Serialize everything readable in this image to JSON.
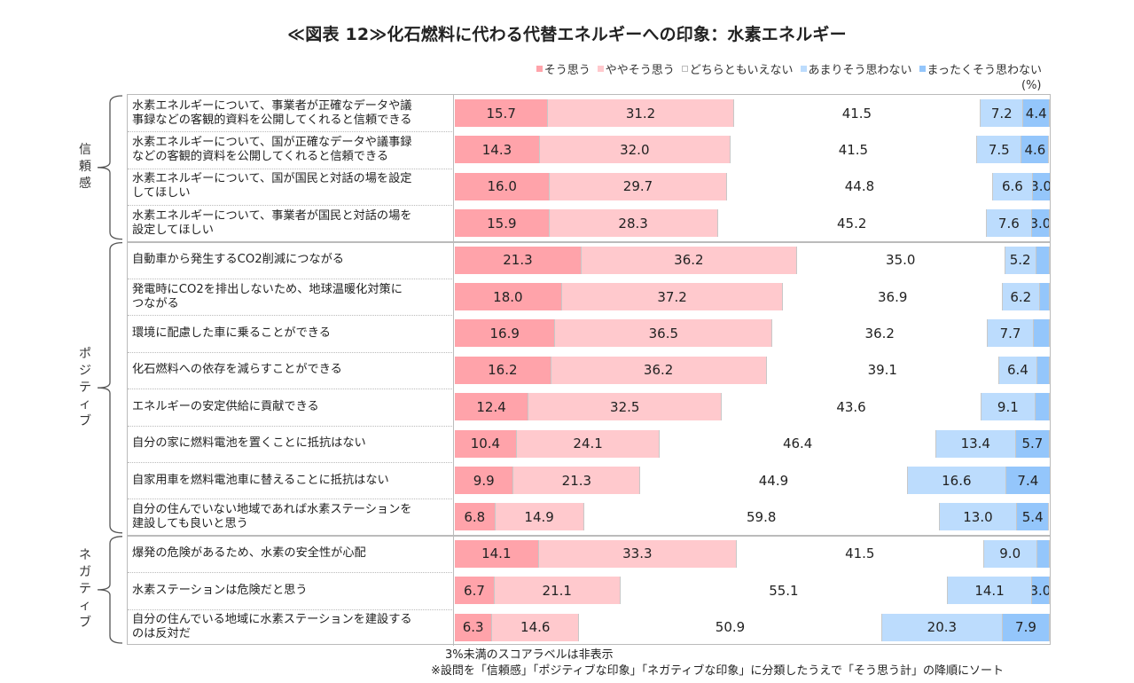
{
  "chart_data": {
    "type": "bar",
    "orientation": "horizontal-stacked-100",
    "title": "≪図表 12≫化石燃料に代わる代替エネルギーへの印象：水素エネルギー",
    "unit": "(%)",
    "legend_position": "top-right",
    "series": [
      {
        "name": "そう思う",
        "color": "#ffa3aa"
      },
      {
        "name": "ややそう思う",
        "color": "#ffc9cd"
      },
      {
        "name": "どちらともいえない",
        "color": "#ffffff"
      },
      {
        "name": "あまりそう思わない",
        "color": "#bcdcfd"
      },
      {
        "name": "まったくそう思わない",
        "color": "#94c6fb"
      }
    ],
    "groups": [
      {
        "name": "信頼感",
        "label_chars": [
          "信",
          "頼",
          "感"
        ],
        "items": [
          {
            "label": [
              "水素エネルギーについて、事業者が正確なデータや議",
              "事録などの客観的資料を公開してくれると信頼できる"
            ],
            "values": [
              15.7,
              31.2,
              41.5,
              7.2,
              4.4
            ]
          },
          {
            "label": [
              "水素エネルギーについて、国が正確なデータや議事録",
              "などの客観的資料を公開してくれると信頼できる"
            ],
            "values": [
              14.3,
              32.0,
              41.5,
              7.5,
              4.6
            ]
          },
          {
            "label": [
              "水素エネルギーについて、国が国民と対話の場を設定",
              "してほしい"
            ],
            "values": [
              16.0,
              29.7,
              44.8,
              6.6,
              3.0
            ]
          },
          {
            "label": [
              "水素エネルギーについて、事業者が国民と対話の場を",
              "設定してほしい"
            ],
            "values": [
              15.9,
              28.3,
              45.2,
              7.6,
              3.0
            ]
          }
        ]
      },
      {
        "name": "ポジティブ",
        "label_chars": [
          "ポ",
          "ジ",
          "テ",
          "ィ",
          "ブ"
        ],
        "items": [
          {
            "label": [
              "自動車から発生するCO2削減につながる"
            ],
            "values": [
              21.3,
              36.2,
              35.0,
              5.2,
              2.3
            ]
          },
          {
            "label": [
              "発電時にCO2を排出しないため、地球温暖化対策に",
              "つながる"
            ],
            "values": [
              18.0,
              37.2,
              36.9,
              6.2,
              1.7
            ]
          },
          {
            "label": [
              "環境に配慮した車に乗ることができる"
            ],
            "values": [
              16.9,
              36.5,
              36.2,
              7.7,
              2.7
            ]
          },
          {
            "label": [
              "化石燃料への依存を減らすことができる"
            ],
            "values": [
              16.2,
              36.2,
              39.1,
              6.4,
              2.1
            ]
          },
          {
            "label": [
              "エネルギーの安定供給に貢献できる"
            ],
            "values": [
              12.4,
              32.5,
              43.6,
              9.1,
              2.4
            ]
          },
          {
            "label": [
              "自分の家に燃料電池を置くことに抵抗はない"
            ],
            "values": [
              10.4,
              24.1,
              46.4,
              13.4,
              5.7
            ]
          },
          {
            "label": [
              "自家用車を燃料電池車に替えることに抵抗はない"
            ],
            "values": [
              9.9,
              21.3,
              44.9,
              16.6,
              7.4
            ]
          },
          {
            "label": [
              "自分の住んでいない地域であれば水素ステーションを",
              "建設しても良いと思う"
            ],
            "values": [
              6.8,
              14.9,
              59.8,
              13.0,
              5.4
            ]
          }
        ]
      },
      {
        "name": "ネガティブ",
        "label_chars": [
          "ネ",
          "ガ",
          "テ",
          "ィ",
          "ブ"
        ],
        "items": [
          {
            "label": [
              "爆発の危険があるため、水素の安全性が心配"
            ],
            "values": [
              14.1,
              33.3,
              41.5,
              9.0,
              2.1
            ]
          },
          {
            "label": [
              "水素ステーションは危険だと思う"
            ],
            "values": [
              6.7,
              21.1,
              55.1,
              14.1,
              3.0
            ]
          },
          {
            "label": [
              "自分の住んでいる地域に水素ステーションを建設する",
              "のは反対だ"
            ],
            "values": [
              6.3,
              14.6,
              50.9,
              20.3,
              7.9
            ]
          }
        ]
      }
    ],
    "label_threshold": 3,
    "xlim": [
      0,
      100
    ]
  },
  "notes": {
    "hidden_labels": "3%未満のスコアラベルは非表示",
    "sort_note": "※設問を「信頼感」「ポジティブな印象」「ネガティブな印象」に分類したうえで「そう思う計」の降順にソート"
  }
}
